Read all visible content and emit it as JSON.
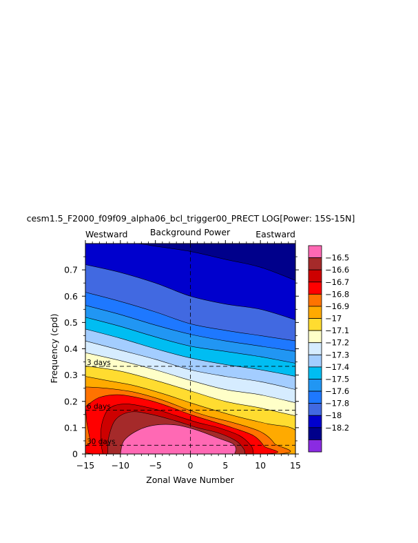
{
  "chart_data": {
    "type": "heatmap",
    "title": "cesm1.5_F2000_f09f09_alpha06_bcl_trigger00_PRECT LOG[Power: 15S-15N]",
    "left_label": "Westward",
    "center_label": "Background Power",
    "right_label": "Eastward",
    "xlabel": "Zonal Wave Number",
    "ylabel": "Frequency (cpd)",
    "xlim": [
      -15,
      15
    ],
    "ylim": [
      0,
      0.8
    ],
    "x_ticks": [
      {
        "value": -15,
        "label": "−15"
      },
      {
        "value": -10,
        "label": "−10"
      },
      {
        "value": -5,
        "label": "−5"
      },
      {
        "value": 0,
        "label": "0"
      },
      {
        "value": 5,
        "label": "5"
      },
      {
        "value": 10,
        "label": "10"
      },
      {
        "value": 15,
        "label": "15"
      }
    ],
    "y_ticks": [
      {
        "value": 0,
        "label": "0"
      },
      {
        "value": 0.1,
        "label": "0.1"
      },
      {
        "value": 0.2,
        "label": "0.2"
      },
      {
        "value": 0.3,
        "label": "0.3"
      },
      {
        "value": 0.4,
        "label": "0.4"
      },
      {
        "value": 0.5,
        "label": "0.5"
      },
      {
        "value": 0.6,
        "label": "0.6"
      },
      {
        "value": 0.7,
        "label": "0.7"
      }
    ],
    "period_lines": [
      {
        "freq": 0.3333,
        "label": "3 days"
      },
      {
        "freq": 0.1667,
        "label": "6 days"
      },
      {
        "freq": 0.0333,
        "label": "30 days"
      }
    ],
    "colorbar": [
      {
        "label": "",
        "color": "#ff69b4"
      },
      {
        "label": "−16.5",
        "color": "#a52a2a"
      },
      {
        "label": "−16.6",
        "color": "#cd0000"
      },
      {
        "label": "−16.7",
        "color": "#ff0000"
      },
      {
        "label": "−16.8",
        "color": "#ff7300"
      },
      {
        "label": "−16.9",
        "color": "#ffaa00"
      },
      {
        "label": "−17",
        "color": "#ffdc30"
      },
      {
        "label": "−17.1",
        "color": "#ffffc8"
      },
      {
        "label": "−17.2",
        "color": "#d6ecff"
      },
      {
        "label": "−17.3",
        "color": "#a3cdff"
      },
      {
        "label": "−17.4",
        "color": "#00bdf2"
      },
      {
        "label": "−17.5",
        "color": "#2196f3"
      },
      {
        "label": "−17.6",
        "color": "#1e78ff"
      },
      {
        "label": "−17.8",
        "color": "#4169e1"
      },
      {
        "label": "−18",
        "color": "#0000cd"
      },
      {
        "label": "−18.2",
        "color": "#00008b"
      },
      {
        "label": "",
        "color": "#8a2be2"
      }
    ],
    "contour_boundaries": [
      {
        "level": "−18",
        "points": [
          [
            -15,
            0.8
          ],
          [
            -8,
            0.8
          ],
          [
            -5,
            0.79
          ],
          [
            0,
            0.77
          ],
          [
            5,
            0.74
          ],
          [
            10,
            0.71
          ],
          [
            15,
            0.66
          ]
        ]
      },
      {
        "level": "−17.8",
        "points": [
          [
            -15,
            0.72
          ],
          [
            -10,
            0.69
          ],
          [
            -5,
            0.65
          ],
          [
            0,
            0.6
          ],
          [
            5,
            0.57
          ],
          [
            10,
            0.55
          ],
          [
            15,
            0.51
          ]
        ]
      },
      {
        "level": "−17.6",
        "points": [
          [
            -15,
            0.615
          ],
          [
            -10,
            0.58
          ],
          [
            -5,
            0.54
          ],
          [
            0,
            0.495
          ],
          [
            5,
            0.47
          ],
          [
            10,
            0.45
          ],
          [
            15,
            0.43
          ]
        ]
      },
      {
        "level": "−17.5",
        "points": [
          [
            -15,
            0.565
          ],
          [
            -10,
            0.53
          ],
          [
            -5,
            0.49
          ],
          [
            0,
            0.455
          ],
          [
            5,
            0.43
          ],
          [
            10,
            0.41
          ],
          [
            15,
            0.39
          ]
        ]
      },
      {
        "level": "−17.4",
        "points": [
          [
            -15,
            0.52
          ],
          [
            -10,
            0.485
          ],
          [
            -5,
            0.445
          ],
          [
            0,
            0.41
          ],
          [
            5,
            0.39
          ],
          [
            10,
            0.37
          ],
          [
            15,
            0.345
          ]
        ]
      },
      {
        "level": "−17.3",
        "points": [
          [
            -15,
            0.475
          ],
          [
            -10,
            0.44
          ],
          [
            -5,
            0.4
          ],
          [
            0,
            0.365
          ],
          [
            5,
            0.34
          ],
          [
            10,
            0.32
          ],
          [
            15,
            0.295
          ]
        ]
      },
      {
        "level": "−17.2",
        "points": [
          [
            -15,
            0.43
          ],
          [
            -10,
            0.395
          ],
          [
            -5,
            0.36
          ],
          [
            0,
            0.32
          ],
          [
            5,
            0.295
          ],
          [
            10,
            0.275
          ],
          [
            15,
            0.245
          ]
        ]
      },
      {
        "level": "−17.1",
        "points": [
          [
            -15,
            0.385
          ],
          [
            -10,
            0.355
          ],
          [
            -5,
            0.32
          ],
          [
            0,
            0.28
          ],
          [
            5,
            0.245
          ],
          [
            10,
            0.225
          ],
          [
            15,
            0.195
          ]
        ]
      },
      {
        "level": "−17",
        "points": [
          [
            -15,
            0.335
          ],
          [
            -10,
            0.315
          ],
          [
            -5,
            0.28
          ],
          [
            0,
            0.24
          ],
          [
            5,
            0.2
          ],
          [
            10,
            0.175
          ],
          [
            15,
            0.145
          ]
        ]
      }
    ],
    "contour_regions": [
      {
        "level": "−16.9",
        "points": [
          [
            -15,
            0.295
          ],
          [
            -12,
            0.28
          ],
          [
            -8,
            0.26
          ],
          [
            -4,
            0.23
          ],
          [
            0,
            0.195
          ],
          [
            3,
            0.17
          ],
          [
            7,
            0.14
          ],
          [
            11,
            0.115
          ],
          [
            15,
            0.09
          ],
          [
            15,
            0
          ],
          [
            -15,
            0
          ]
        ]
      },
      {
        "level": "−16.8",
        "points": [
          [
            -15,
            0.255
          ],
          [
            -12,
            0.25
          ],
          [
            -8,
            0.235
          ],
          [
            -4,
            0.205
          ],
          [
            0,
            0.165
          ],
          [
            3,
            0.14
          ],
          [
            6,
            0.12
          ],
          [
            10,
            0.085
          ],
          [
            12,
            0.04
          ],
          [
            12.3,
            0
          ],
          [
            -15,
            0
          ]
        ]
      },
      {
        "level": "−16.7",
        "points": [
          [
            -15,
            0.18
          ],
          [
            -13,
            0.215
          ],
          [
            -10,
            0.225
          ],
          [
            -6,
            0.205
          ],
          [
            -3,
            0.18
          ],
          [
            0,
            0.15
          ],
          [
            3,
            0.125
          ],
          [
            6,
            0.1
          ],
          [
            9,
            0.07
          ],
          [
            10.5,
            0.03
          ],
          [
            10.7,
            0
          ],
          [
            -13.7,
            0
          ],
          [
            -14.3,
            0.05
          ],
          [
            -14.8,
            0.12
          ]
        ]
      },
      {
        "level": "−16.6",
        "points": [
          [
            -12.5,
            0
          ],
          [
            -12.8,
            0.05
          ],
          [
            -12.6,
            0.12
          ],
          [
            -11.5,
            0.175
          ],
          [
            -9,
            0.19
          ],
          [
            -5,
            0.17
          ],
          [
            -2,
            0.145
          ],
          [
            1,
            0.12
          ],
          [
            4,
            0.1
          ],
          [
            7,
            0.07
          ],
          [
            8.7,
            0.03
          ],
          [
            9,
            0
          ]
        ]
      },
      {
        "level": "−16.5",
        "points": [
          [
            -11.8,
            0
          ],
          [
            -11.7,
            0.06
          ],
          [
            -10.7,
            0.13
          ],
          [
            -8.5,
            0.16
          ],
          [
            -5.5,
            0.15
          ],
          [
            -2,
            0.125
          ],
          [
            1,
            0.1
          ],
          [
            4,
            0.08
          ],
          [
            6.5,
            0.05
          ],
          [
            7.6,
            0.02
          ],
          [
            7.8,
            0
          ]
        ]
      },
      {
        "level": "max",
        "points": [
          [
            -10,
            0
          ],
          [
            -9.5,
            0.05
          ],
          [
            -7.5,
            0.09
          ],
          [
            -5,
            0.11
          ],
          [
            -2,
            0.11
          ],
          [
            1,
            0.09
          ],
          [
            4,
            0.06
          ],
          [
            6,
            0.04
          ],
          [
            6.5,
            0.02
          ],
          [
            6.3,
            0
          ]
        ]
      }
    ]
  }
}
